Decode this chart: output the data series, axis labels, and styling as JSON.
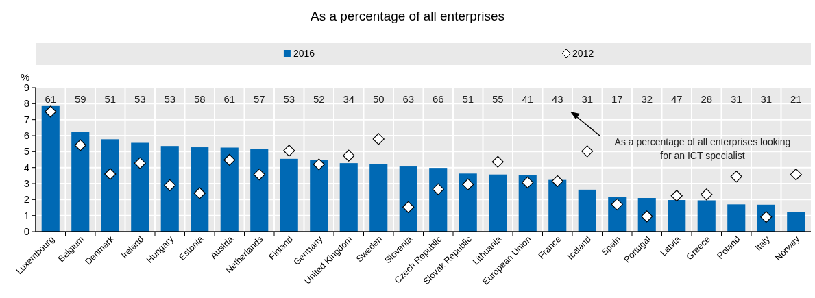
{
  "chart_data": {
    "type": "bar",
    "title": "As a percentage of all enterprises",
    "ylabel": "%",
    "categories": [
      "Luxembourg",
      "Belgium",
      "Denmark",
      "Ireland",
      "Hungary",
      "Estonia",
      "Austria",
      "Netherlands",
      "Finland",
      "Germany",
      "United Kingdom",
      "Sweden",
      "Slovenia",
      "Czech Republic",
      "Slovak Republic",
      "Lithuania",
      "European Union",
      "France",
      "Iceland",
      "Spain",
      "Portugal",
      "Latvia",
      "Greece",
      "Poland",
      "Italy",
      "Norway"
    ],
    "series": [
      {
        "name": "2016",
        "color": "#0069b4",
        "values": [
          7.85,
          6.25,
          5.77,
          5.55,
          5.35,
          5.27,
          5.25,
          5.15,
          4.55,
          4.48,
          4.28,
          4.23,
          4.07,
          3.98,
          3.63,
          3.57,
          3.53,
          3.23,
          2.62,
          2.16,
          2.1,
          1.97,
          1.95,
          1.7,
          1.68,
          1.24
        ]
      },
      {
        "name": "2012",
        "type": "scatter",
        "color": "#ffffff",
        "marker": "diamond",
        "values": [
          7.5,
          5.4,
          3.6,
          4.28,
          2.9,
          2.4,
          4.48,
          3.57,
          5.06,
          4.2,
          4.75,
          5.79,
          1.53,
          2.65,
          2.95,
          4.36,
          3.07,
          3.15,
          5.02,
          1.7,
          0.95,
          2.24,
          2.32,
          3.44,
          0.91,
          3.57
        ]
      }
    ],
    "ylim": [
      0,
      9
    ],
    "yticks": [
      0,
      1,
      2,
      3,
      4,
      5,
      6,
      7,
      8,
      9
    ],
    "grid": true,
    "legend": "top",
    "annotations": [
      "61",
      "59",
      "51",
      "53",
      "53",
      "58",
      "61",
      "57",
      "53",
      "52",
      "34",
      "50",
      "63",
      "66",
      "51",
      "55",
      "41",
      "43",
      "31",
      "17",
      "32",
      "47",
      "28",
      "31",
      "31",
      "21",
      "As a percentage of all enterprises looking for an ICT specialist"
    ]
  }
}
